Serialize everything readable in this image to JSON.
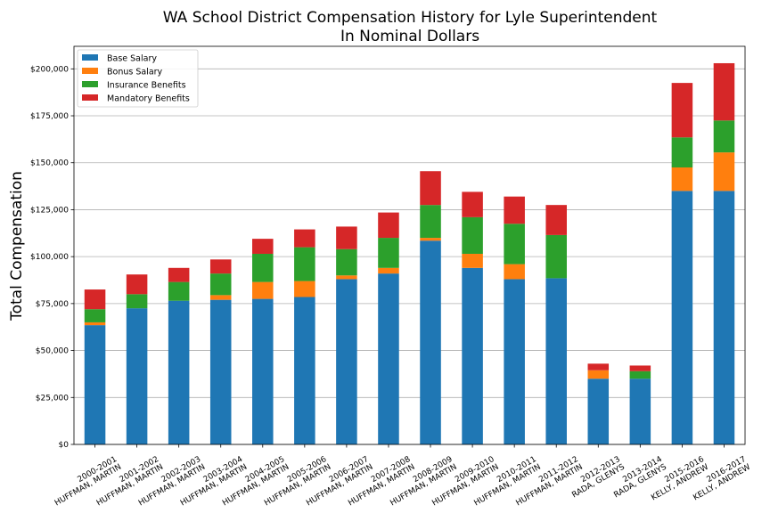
{
  "chart_data": {
    "type": "bar",
    "stacked": true,
    "title": "WA School District Compensation History for Lyle Superintendent",
    "subtitle": "In Nominal Dollars",
    "xlabel": "",
    "ylabel": "Total Compensation",
    "ylim": [
      0,
      212000
    ],
    "yticks": [
      0,
      25000,
      50000,
      75000,
      100000,
      125000,
      150000,
      175000,
      200000
    ],
    "ytick_labels": [
      "$0",
      "$25,000",
      "$50,000",
      "$75,000",
      "$100,000",
      "$125,000",
      "$150,000",
      "$175,000",
      "$200,000"
    ],
    "grid": "horizontal",
    "legend_position": "top-left",
    "categories": [
      [
        "2000-2001",
        "HUFFMAN, MARTIN"
      ],
      [
        "2001-2002",
        "HUFFMAN, MARTIN"
      ],
      [
        "2002-2003",
        "HUFFMAN, MARTIN"
      ],
      [
        "2003-2004",
        "HUFFMAN, MARTIN"
      ],
      [
        "2004-2005",
        "HUFFMAN, MARTIN"
      ],
      [
        "2005-2006",
        "HUFFMAN, MARTIN"
      ],
      [
        "2006-2007",
        "HUFFMAN, MARTIN"
      ],
      [
        "2007-2008",
        "HUFFMAN, MARTIN"
      ],
      [
        "2008-2009",
        "HUFFMAN, MARTIN"
      ],
      [
        "2009-2010",
        "HUFFMAN, MARTIN"
      ],
      [
        "2010-2011",
        "HUFFMAN, MARTIN"
      ],
      [
        "2011-2012",
        "HUFFMAN, MARTIN"
      ],
      [
        "2012-2013",
        "RADA, GLENYS"
      ],
      [
        "2013-2014",
        "RADA, GLENYS"
      ],
      [
        "2015-2016",
        "KELLY, ANDREW"
      ],
      [
        "2016-2017",
        "KELLY, ANDREW"
      ]
    ],
    "series": [
      {
        "name": "Base Salary",
        "color": "#1f77b4",
        "values": [
          63500,
          72500,
          76500,
          77000,
          77500,
          78500,
          88000,
          91000,
          108500,
          94000,
          88000,
          88500,
          35000,
          35000,
          135000,
          135000
        ]
      },
      {
        "name": "Bonus Salary",
        "color": "#ff7f0e",
        "values": [
          1500,
          0,
          0,
          2500,
          9000,
          8500,
          2000,
          3000,
          1500,
          7500,
          8000,
          0,
          4500,
          0,
          12500,
          20500
        ]
      },
      {
        "name": "Insurance Benefits",
        "color": "#2ca02c",
        "values": [
          7000,
          7500,
          10000,
          11500,
          15000,
          18000,
          14000,
          16000,
          17500,
          19500,
          21500,
          23000,
          0,
          4000,
          16000,
          17000
        ]
      },
      {
        "name": "Mandatory Benefits",
        "color": "#d62728",
        "values": [
          10500,
          10500,
          7500,
          7500,
          8000,
          9500,
          12000,
          13500,
          18000,
          13500,
          14500,
          16000,
          3500,
          3000,
          29000,
          30500
        ]
      }
    ]
  }
}
